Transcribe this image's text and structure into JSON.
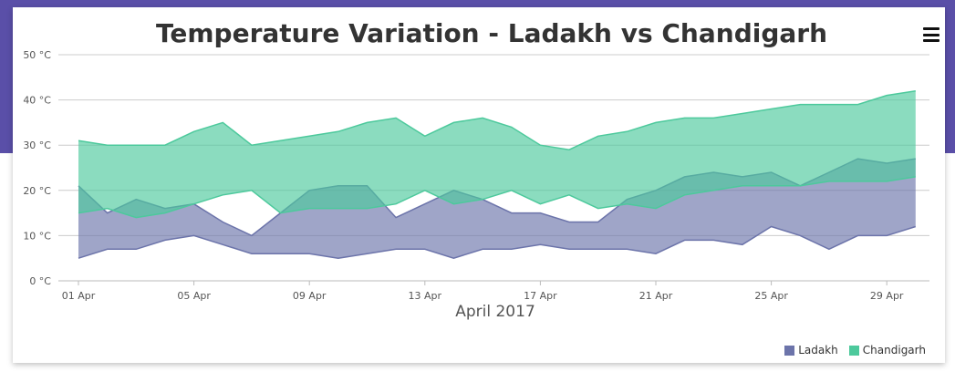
{
  "chart_data": {
    "type": "range-area",
    "title": "Temperature Variation - Ladakh vs Chandigarh",
    "xlabel": "April 2017",
    "ylabel": "",
    "y_unit": "°C",
    "ylim": [
      0,
      50
    ],
    "y_ticks": [
      0,
      10,
      20,
      30,
      40,
      50
    ],
    "y_tick_labels": [
      "0 °C",
      "10 °C",
      "20 °C",
      "30 °C",
      "40 °C",
      "50 °C"
    ],
    "x": [
      "2017-04-01",
      "2017-04-02",
      "2017-04-03",
      "2017-04-04",
      "2017-04-05",
      "2017-04-06",
      "2017-04-07",
      "2017-04-08",
      "2017-04-09",
      "2017-04-10",
      "2017-04-11",
      "2017-04-12",
      "2017-04-13",
      "2017-04-14",
      "2017-04-15",
      "2017-04-16",
      "2017-04-17",
      "2017-04-18",
      "2017-04-19",
      "2017-04-20",
      "2017-04-21",
      "2017-04-22",
      "2017-04-23",
      "2017-04-24",
      "2017-04-25",
      "2017-04-26",
      "2017-04-27",
      "2017-04-28",
      "2017-04-29",
      "2017-04-30"
    ],
    "x_tick_labels": [
      "01 Apr",
      "05 Apr",
      "09 Apr",
      "13 Apr",
      "17 Apr",
      "21 Apr",
      "25 Apr",
      "29 Apr"
    ],
    "legend_position": "bottom-right",
    "grid": "horizontal",
    "series": [
      {
        "name": "Ladakh",
        "color": "#6c74aa",
        "low": [
          5,
          7,
          7,
          9,
          10,
          8,
          6,
          6,
          6,
          5,
          6,
          7,
          7,
          5,
          7,
          7,
          8,
          7,
          7,
          7,
          6,
          9,
          9,
          8,
          12,
          10,
          7,
          10,
          10,
          12
        ],
        "high": [
          21,
          15,
          18,
          16,
          17,
          13,
          10,
          15,
          20,
          21,
          21,
          14,
          17,
          20,
          18,
          15,
          15,
          13,
          13,
          18,
          20,
          23,
          24,
          23,
          24,
          21,
          24,
          27,
          26,
          27
        ]
      },
      {
        "name": "Chandigarh",
        "color": "#4dc99c",
        "low": [
          15,
          16,
          14,
          15,
          17,
          19,
          20,
          15,
          16,
          16,
          16,
          17,
          20,
          17,
          18,
          20,
          17,
          19,
          16,
          17,
          16,
          19,
          20,
          21,
          21,
          21,
          22,
          22,
          22,
          23
        ],
        "high": [
          31,
          30,
          30,
          30,
          33,
          35,
          30,
          31,
          32,
          33,
          35,
          36,
          32,
          35,
          36,
          34,
          30,
          29,
          32,
          33,
          35,
          36,
          36,
          37,
          38,
          39,
          39,
          39,
          41,
          42
        ]
      }
    ]
  },
  "menu": {
    "icon": "hamburger-menu-icon"
  }
}
